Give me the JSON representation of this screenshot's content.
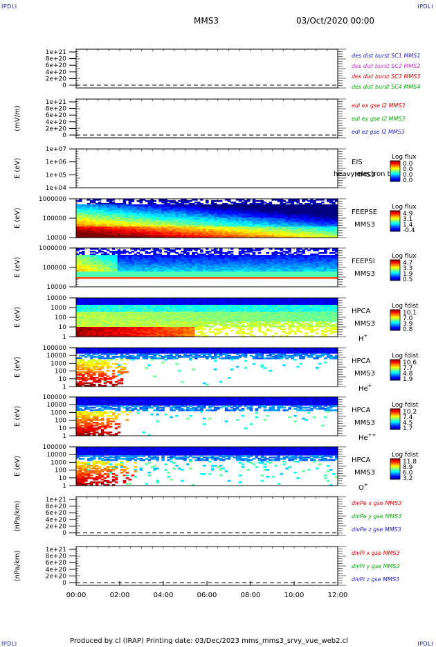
{
  "corners": {
    "tl": "IPDLI",
    "tr": "IPDLI",
    "bl": "IPDLI",
    "br": "IPDLI"
  },
  "header": {
    "mission": "MMS3",
    "date": "03/Oct/2020 00:00"
  },
  "footer": {
    "text": "Produced by cl (IRAP)   Printing date: 03/Dec/2023   mms_mms3_srvy_vue_web2.cl"
  },
  "chart_data": [
    {
      "type": "line",
      "ylabel": "",
      "yticks": [
        "1e+21",
        "8e+20",
        "6e+20",
        "4e+20",
        "2e+20",
        "0"
      ],
      "series": [
        {
          "name": "des dist burst SC1 MMS1",
          "color": "#2222cc"
        },
        {
          "name": "des dist burst SC2 MMS2",
          "color": "#d030d0"
        },
        {
          "name": "des dist burst SC3 MMS3",
          "color": "#dd0000"
        },
        {
          "name": "des dist burst SC4 MMS4",
          "color": "#00aa00"
        }
      ]
    },
    {
      "type": "line",
      "ylabel": "(mV/m)",
      "yticks": [
        "1e+21",
        "8e+20",
        "6e+20",
        "4e+20",
        "2e+20",
        "0"
      ],
      "series": [
        {
          "name": "edi ex gse l2 MMS3",
          "color": "#dd0000"
        },
        {
          "name": "edi ey gse l2 MMS3",
          "color": "#00aa00"
        },
        {
          "name": "edi ez gse l2 MMS3",
          "color": "#2222cc"
        }
      ]
    },
    {
      "type": "heatmap",
      "ylabel": "E (eV)",
      "yticks": [
        "1e+07",
        "1e+06",
        "1e+05",
        "1e+04"
      ],
      "labels": [
        "EIS",
        "MMS3"
      ],
      "extra_text": "heavy electron to",
      "cbar_title": "Log flux",
      "cbar_ticks": [
        "0.0",
        "0.0",
        "0.0",
        "0.0"
      ],
      "empty": true
    },
    {
      "type": "heatmap",
      "ylabel": "E (eV)",
      "yticks": [
        "1000000",
        "100000",
        "10000"
      ],
      "labels": [
        "FEEPSE",
        "MMS3"
      ],
      "cbar_title": "Log flux",
      "cbar_ticks": [
        "4.9",
        "3.1",
        "1.4",
        "-0.4"
      ]
    },
    {
      "type": "heatmap",
      "ylabel": "E (eV)",
      "yticks": [
        "1000000",
        "100000",
        "10000"
      ],
      "labels": [
        "FEEPSI",
        "MMS3"
      ],
      "cbar_title": "Log flux",
      "cbar_ticks": [
        "4.7",
        "3.3",
        "1.9",
        "0.5"
      ]
    },
    {
      "type": "heatmap",
      "ylabel": "E (eV)",
      "yticks": [
        "10000",
        "1000",
        "100",
        "10",
        "1"
      ],
      "labels": [
        "HPCA",
        "MMS3"
      ],
      "species": "H",
      "sup": "+",
      "cbar_title": "Log fdist",
      "cbar_ticks": [
        "10.1",
        "7.0",
        "3.9",
        "0.8"
      ]
    },
    {
      "type": "heatmap",
      "ylabel": "E (eV)",
      "yticks": [
        "100000",
        "10000",
        "1000",
        "100",
        "10",
        "1"
      ],
      "labels": [
        "HPCA",
        "MMS3"
      ],
      "species": "He",
      "sup": "+",
      "cbar_title": "Log fdist",
      "cbar_ticks": [
        "10.6",
        "7.7",
        "4.8",
        "1.9"
      ]
    },
    {
      "type": "heatmap",
      "ylabel": "E (eV)",
      "yticks": [
        "100000",
        "10000",
        "1000",
        "100",
        "10",
        "1"
      ],
      "labels": [
        "HPCA",
        "MMS3"
      ],
      "species": "He",
      "sup": "++",
      "cbar_title": "Log fdist",
      "cbar_ticks": [
        "10.2",
        "7.4",
        "4.5",
        "1.7"
      ]
    },
    {
      "type": "heatmap",
      "ylabel": "E (eV)",
      "yticks": [
        "100000",
        "10000",
        "1000",
        "100",
        "10",
        "1"
      ],
      "labels": [
        "HPCA",
        "MMS3"
      ],
      "species": "O",
      "sup": "+",
      "cbar_title": "Log fdist",
      "cbar_ticks": [
        "11.8",
        "8.9",
        "6.0",
        "3.2"
      ]
    },
    {
      "type": "line",
      "ylabel": "(nPa/km)",
      "yticks": [
        "1e+21",
        "8e+20",
        "6e+20",
        "4e+20",
        "2e+20",
        "0"
      ],
      "series": [
        {
          "name": "divPe x gse MMS3",
          "color": "#dd0000"
        },
        {
          "name": "divPe y gse MMS3",
          "color": "#00aa00"
        },
        {
          "name": "divPe z gse MMS3",
          "color": "#2222cc"
        }
      ]
    },
    {
      "type": "line",
      "ylabel": "(nPa/km)",
      "yticks": [
        "1e+21",
        "8e+20",
        "6e+20",
        "4e+20",
        "2e+20",
        "0"
      ],
      "series": [
        {
          "name": "divPi x gse MMS3",
          "color": "#dd0000"
        },
        {
          "name": "divPi y gse MMS3",
          "color": "#00aa00"
        },
        {
          "name": "divPi z gse MMS3",
          "color": "#2222cc"
        }
      ]
    }
  ],
  "xaxis": {
    "ticks": [
      "00:00",
      "02:00",
      "04:00",
      "06:00",
      "08:00",
      "10:00",
      "12:00"
    ]
  }
}
